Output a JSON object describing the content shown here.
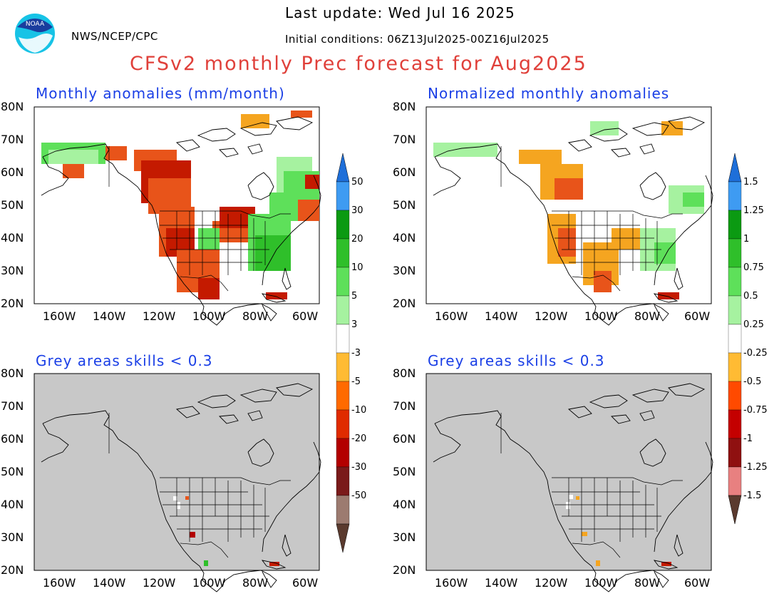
{
  "header": {
    "agency": "NWS/NCEP/CPC",
    "logo_text": "NOAA",
    "last_update": "Last update: Wed Jul 16 2025",
    "init_conditions": "Initial conditions: 06Z13Jul2025-00Z16Jul2025",
    "title": "CFSv2 monthly Prec forecast for Aug2025"
  },
  "panels": [
    {
      "title": "Monthly anomalies (mm/month)"
    },
    {
      "title": "Normalized monthly anomalies"
    },
    {
      "title": "Grey areas skills < 0.3"
    },
    {
      "title": "Grey areas skills < 0.3"
    }
  ],
  "axes": {
    "lat_labels": [
      "80N",
      "70N",
      "60N",
      "50N",
      "40N",
      "30N",
      "20N"
    ],
    "lon_labels": [
      "160W",
      "140W",
      "120W",
      "100W",
      "80W",
      "60W"
    ]
  },
  "colorbar_left": {
    "labels": [
      "50",
      "30",
      "20",
      "10",
      "5",
      "3",
      "-3",
      "-5",
      "-10",
      "-20",
      "-30",
      "-50"
    ],
    "colors": [
      "#1e6fd9",
      "#3e9bf2",
      "#0b9a12",
      "#2fbf2a",
      "#5ee05a",
      "#a6f2a0",
      "#ffffff",
      "#ffbb33",
      "#ff6a00",
      "#e02b00",
      "#b30000",
      "#7a1a1a",
      "#9c7b70",
      "#5a3a2e"
    ]
  },
  "colorbar_right": {
    "labels": [
      "1.5",
      "1.25",
      "1",
      "0.75",
      "0.5",
      "0.25",
      "-0.25",
      "-0.5",
      "-0.75",
      "-1",
      "-1.25",
      "-1.5"
    ],
    "colors": [
      "#1e6fd9",
      "#3e9bf2",
      "#0b9a12",
      "#2fbf2a",
      "#5ee05a",
      "#a6f2a0",
      "#ffffff",
      "#ffbb33",
      "#ff4a00",
      "#c40000",
      "#8f1010",
      "#e88080",
      "#5a3a2e"
    ]
  },
  "map_colors": {
    "ocean": "#ffffff",
    "grey": "#c8c8c8",
    "dry_strong": "#c41a00",
    "dry": "#e8541a",
    "dry_light": "#f5a520",
    "wet_light": "#a6f2a0",
    "wet": "#5ee05a",
    "wet_strong": "#2fbf2a"
  }
}
